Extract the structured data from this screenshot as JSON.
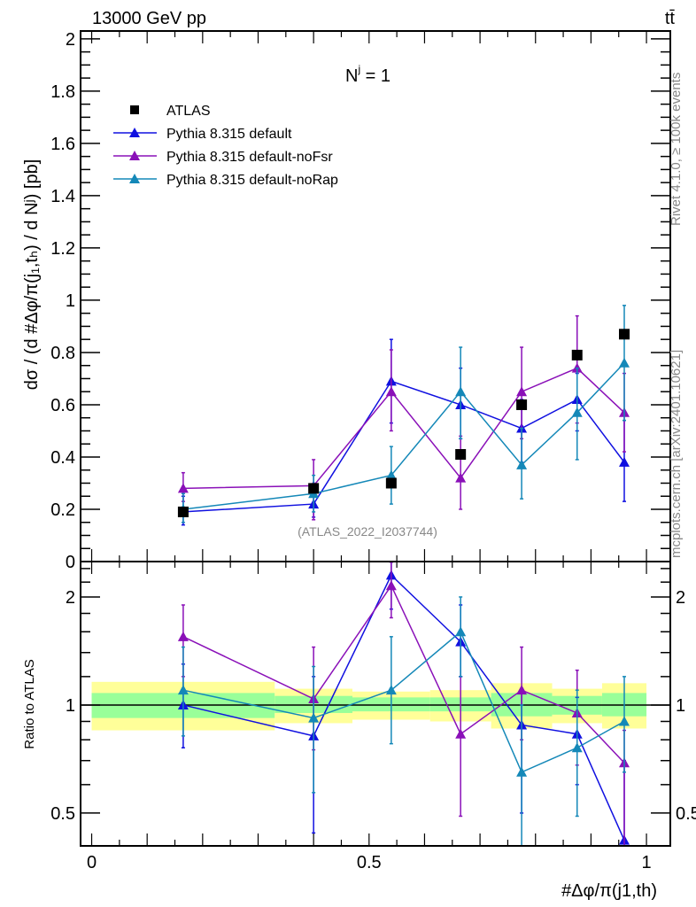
{
  "header": {
    "energy": "13000 GeV pp",
    "process": "tt̄"
  },
  "side_texts": {
    "rivet": "Rivet 4.1.0, ≥ 100k events",
    "mcplots": "mcplots.cern.ch [arXiv:2401.10621]"
  },
  "analysis_id": "(ATLAS_2022_I2037744)",
  "chart_data": [
    {
      "type": "line",
      "title": "N^j = 1",
      "title_main": "N",
      "title_sup": "j",
      "title_rest": " = 1",
      "xlabel": "#Δφ/π(j1,th)",
      "ylabel": "dσ / (d #Δφ/π(j1,th) / d N^j) [pb]",
      "ylabel_text": "dσ / (d #Δφ/π(j₁,tₕ) / d Nʲ) [pb]",
      "xlim": [
        -0.02,
        1.043
      ],
      "ylim": [
        0,
        2.03
      ],
      "yticks": [
        "0",
        "0.2",
        "0.4",
        "0.6",
        "0.8",
        "1",
        "1.2",
        "1.4",
        "1.6",
        "1.8",
        "2"
      ],
      "xticks": [
        "0",
        "0.5",
        "1"
      ],
      "legend_position": "top-left",
      "x": [
        0.165,
        0.4,
        0.54,
        0.665,
        0.775,
        0.875,
        0.96
      ],
      "series": [
        {
          "name": "ATLAS",
          "color": "#000000",
          "marker": "square",
          "values": [
            0.19,
            0.28,
            0.3,
            0.41,
            0.6,
            0.79,
            0.87
          ],
          "err": [
            [
              0.18,
              0.2
            ],
            [
              0.27,
              0.29
            ],
            [
              0.29,
              0.31
            ],
            [
              0.4,
              0.42
            ],
            [
              0.59,
              0.61
            ],
            [
              0.78,
              0.8
            ],
            [
              0.86,
              0.88
            ]
          ]
        },
        {
          "name": "Pythia 8.315 default",
          "color": "#1010e0",
          "marker": "triangle",
          "values": [
            0.19,
            0.22,
            0.69,
            0.6,
            0.51,
            0.62,
            0.38
          ],
          "err": [
            [
              0.14,
              0.25
            ],
            [
              0.17,
              0.27
            ],
            [
              0.53,
              0.85
            ],
            [
              0.47,
              0.74
            ],
            [
              0.38,
              0.62
            ],
            [
              0.5,
              0.72
            ],
            [
              0.23,
              0.54
            ]
          ]
        },
        {
          "name": "Pythia 8.315 default-noFsr",
          "color": "#8a10b8",
          "marker": "triangle",
          "values": [
            0.28,
            0.29,
            0.65,
            0.32,
            0.65,
            0.74,
            0.57
          ],
          "err": [
            [
              0.23,
              0.34
            ],
            [
              0.16,
              0.39
            ],
            [
              0.5,
              0.81
            ],
            [
              0.2,
              0.48
            ],
            [
              0.47,
              0.82
            ],
            [
              0.53,
              0.94
            ],
            [
              0.42,
              0.72
            ]
          ]
        },
        {
          "name": "Pythia 8.315 default-noRap",
          "color": "#1488b8",
          "marker": "triangle",
          "values": [
            0.2,
            0.26,
            0.33,
            0.65,
            0.37,
            0.57,
            0.76
          ],
          "err": [
            [
              0.15,
              0.26
            ],
            [
              0.19,
              0.33
            ],
            [
              0.22,
              0.44
            ],
            [
              0.47,
              0.82
            ],
            [
              0.24,
              0.51
            ],
            [
              0.39,
              0.74
            ],
            [
              0.54,
              0.98
            ]
          ]
        }
      ]
    },
    {
      "type": "line",
      "ylabel": "Ratio to ATLAS",
      "yscale": "log",
      "ylim": [
        0.405,
        2.51
      ],
      "yticks": [
        "0.5",
        "1",
        "2"
      ],
      "ytick_values": [
        0.5,
        1,
        2
      ],
      "bin_edges": [
        0,
        0.33,
        0.47,
        0.61,
        0.72,
        0.83,
        0.92,
        1
      ],
      "band_total": [
        [
          0.85,
          1.16
        ],
        [
          0.89,
          1.11
        ],
        [
          0.91,
          1.09
        ],
        [
          0.9,
          1.1
        ],
        [
          0.86,
          1.15
        ],
        [
          0.89,
          1.11
        ],
        [
          0.86,
          1.15
        ]
      ],
      "band_stat": [
        [
          0.92,
          1.08
        ],
        [
          0.95,
          1.06
        ],
        [
          0.96,
          1.05
        ],
        [
          0.96,
          1.05
        ],
        [
          0.93,
          1.08
        ],
        [
          0.94,
          1.06
        ],
        [
          0.93,
          1.08
        ]
      ],
      "band_total_color": "#ffff99",
      "band_stat_color": "#99ff99",
      "series": [
        {
          "name": "Pythia 8.315 default",
          "color": "#1010e0",
          "values": [
            1.0,
            0.82,
            2.3,
            1.5,
            0.88,
            0.83,
            0.42
          ],
          "err": [
            [
              0.76,
              1.3
            ],
            [
              0.44,
              1.2
            ],
            [
              1.85,
              2.5
            ],
            [
              1.2,
              1.9
            ],
            [
              0.5,
              1.1
            ],
            [
              0.6,
              1.05
            ],
            [
              0.35,
              0.7
            ]
          ]
        },
        {
          "name": "Pythia 8.315 default-noFsr",
          "color": "#8a10b8",
          "values": [
            1.55,
            1.04,
            2.15,
            0.83,
            1.1,
            0.95,
            0.69
          ],
          "err": [
            [
              1.2,
              1.9
            ],
            [
              0.75,
              1.45
            ],
            [
              1.75,
              2.5
            ],
            [
              0.49,
              1.2
            ],
            [
              0.8,
              1.45
            ],
            [
              0.68,
              1.25
            ],
            [
              0.4,
              0.85
            ]
          ]
        },
        {
          "name": "Pythia 8.315 default-noRap",
          "color": "#1488b8",
          "values": [
            1.1,
            0.92,
            1.1,
            1.6,
            0.65,
            0.76,
            0.9
          ],
          "err": [
            [
              0.82,
              1.45
            ],
            [
              0.57,
              1.28
            ],
            [
              0.78,
              1.55
            ],
            [
              1.2,
              2.0
            ],
            [
              0.4,
              1.0
            ],
            [
              0.49,
              1.1
            ],
            [
              0.65,
              1.2
            ]
          ]
        }
      ]
    }
  ]
}
